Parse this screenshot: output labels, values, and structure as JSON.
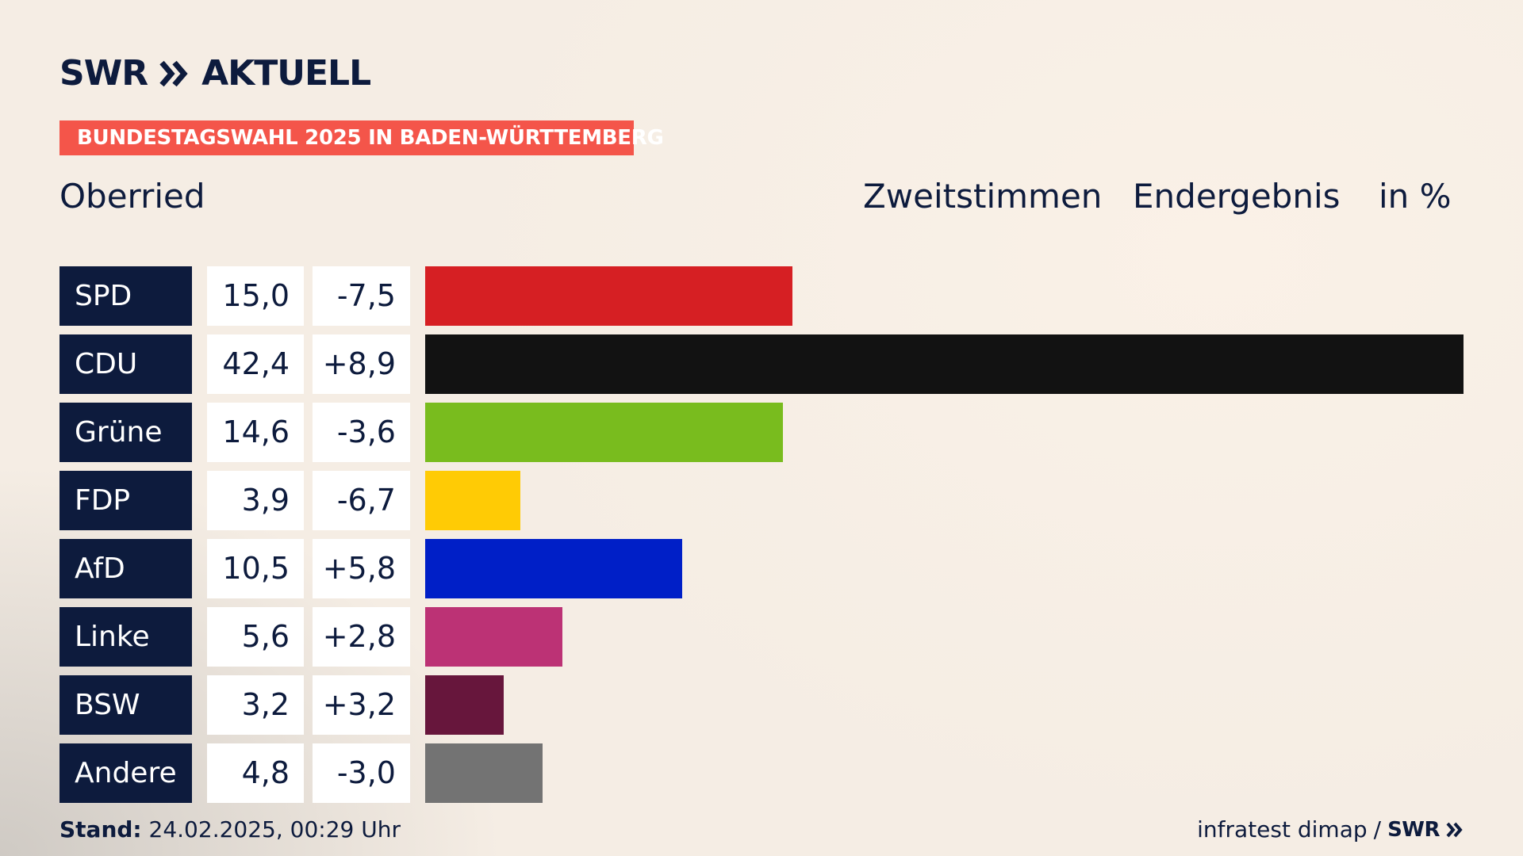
{
  "brand": {
    "name": "SWR",
    "product": "AKTUELL"
  },
  "banner": "BUNDESTAGSWAHL 2025 IN BADEN-WÜRTTEMBERG",
  "place": "Oberried",
  "header": {
    "vote_type": "Zweitstimmen",
    "status": "Endergebnis",
    "unit": "in %"
  },
  "footer": {
    "stand_label": "Stand:",
    "stand_value": "24.02.2025, 00:29 Uhr",
    "source": "infratest dimap",
    "separator": "/",
    "source_brand": "SWR"
  },
  "colors": {
    "navy": "#0d1b3d",
    "banner": "#f4554a"
  },
  "chart_data": {
    "type": "bar",
    "orientation": "horizontal",
    "title": "",
    "xlabel": "",
    "ylabel": "",
    "xlim": [
      0,
      42.4
    ],
    "grid": false,
    "categories": [
      "SPD",
      "CDU",
      "Grüne",
      "FDP",
      "AfD",
      "Linke",
      "BSW",
      "Andere"
    ],
    "values": [
      15.0,
      42.4,
      14.6,
      3.9,
      10.5,
      5.6,
      3.2,
      4.8
    ],
    "values_label": [
      "15,0",
      "42,4",
      "14,6",
      "3,9",
      "10,5",
      "5,6",
      "3,2",
      "4,8"
    ],
    "diff_label": [
      "-7,5",
      "+8,9",
      "-3,6",
      "-6,7",
      "+5,8",
      "+2,8",
      "+3,2",
      "-3,0"
    ],
    "colors": [
      "#d61f23",
      "#121212",
      "#79bc1e",
      "#ffcb05",
      "#001fc7",
      "#bc3275",
      "#67163c",
      "#737373"
    ]
  }
}
